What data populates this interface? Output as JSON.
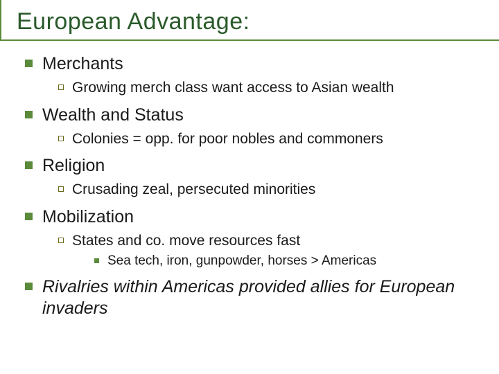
{
  "title": "European Advantage:",
  "colors": {
    "accent": "#5a8a3a",
    "title_text": "#2a5a2a",
    "sub_bullet_border": "#6a6a1a",
    "body_text": "#1a1a1a",
    "background": "#ffffff"
  },
  "font_sizes": {
    "title": 34,
    "lvl1": 25,
    "lvl2": 21,
    "lvl3": 19
  },
  "items": [
    {
      "label": "Merchants",
      "sub": [
        {
          "label": "Growing merch class want access to Asian wealth"
        }
      ]
    },
    {
      "label": "Wealth and Status",
      "sub": [
        {
          "label": "Colonies = opp. for poor nobles and commoners"
        }
      ]
    },
    {
      "label": "Religion",
      "sub": [
        {
          "label": "Crusading zeal, persecuted minorities"
        }
      ]
    },
    {
      "label": "Mobilization",
      "sub": [
        {
          "label": "States and co. move resources fast",
          "sub": [
            {
              "label": "Sea tech, iron, gunpowder, horses > Americas"
            }
          ]
        }
      ]
    },
    {
      "label": "Rivalries within Americas provided allies for European invaders",
      "italic": true
    }
  ]
}
